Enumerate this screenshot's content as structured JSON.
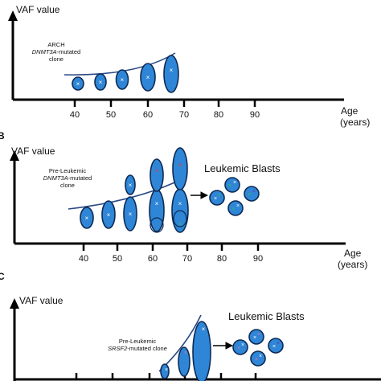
{
  "panelA": {
    "y_axis_label": "VAF value",
    "clone_label_1": "ARCH",
    "clone_label_2": "DNMT3A",
    "clone_label_3": "-mutated",
    "clone_label_4": "clone",
    "x_ticks": [
      "40",
      "50",
      "60",
      "70",
      "80",
      "90"
    ],
    "x_axis_label_1": "Age",
    "x_axis_label_2": "(years)"
  },
  "panelB": {
    "panel_letter": "B",
    "y_axis_label": "VAF value",
    "clone_label_1": "Pre-Leukemic",
    "clone_label_2": "DNMT3A",
    "clone_label_3": "-mutated",
    "clone_label_4": "clone",
    "blasts_label": "Leukemic Blasts",
    "x_ticks": [
      "40",
      "50",
      "60",
      "70",
      "80",
      "90"
    ],
    "x_axis_label_1": "Age",
    "x_axis_label_2": "(years)"
  },
  "panelC": {
    "panel_letter": "C",
    "y_axis_label": "VAF value",
    "clone_label_1": "Pre-Leukemic",
    "clone_label_2": "SRSF2",
    "clone_label_3": "-mutated clone",
    "blasts_label": "Leukemic Blasts"
  },
  "colors": {
    "cell_fill": "#2f86d6",
    "cell_outline": "#0d2a55",
    "mark_white": "#ffffff",
    "mark_red": "#e23b3b",
    "mark_green": "#35c24a",
    "mark_purple": "#6b2fa8",
    "mark_pink": "#e070b0"
  }
}
